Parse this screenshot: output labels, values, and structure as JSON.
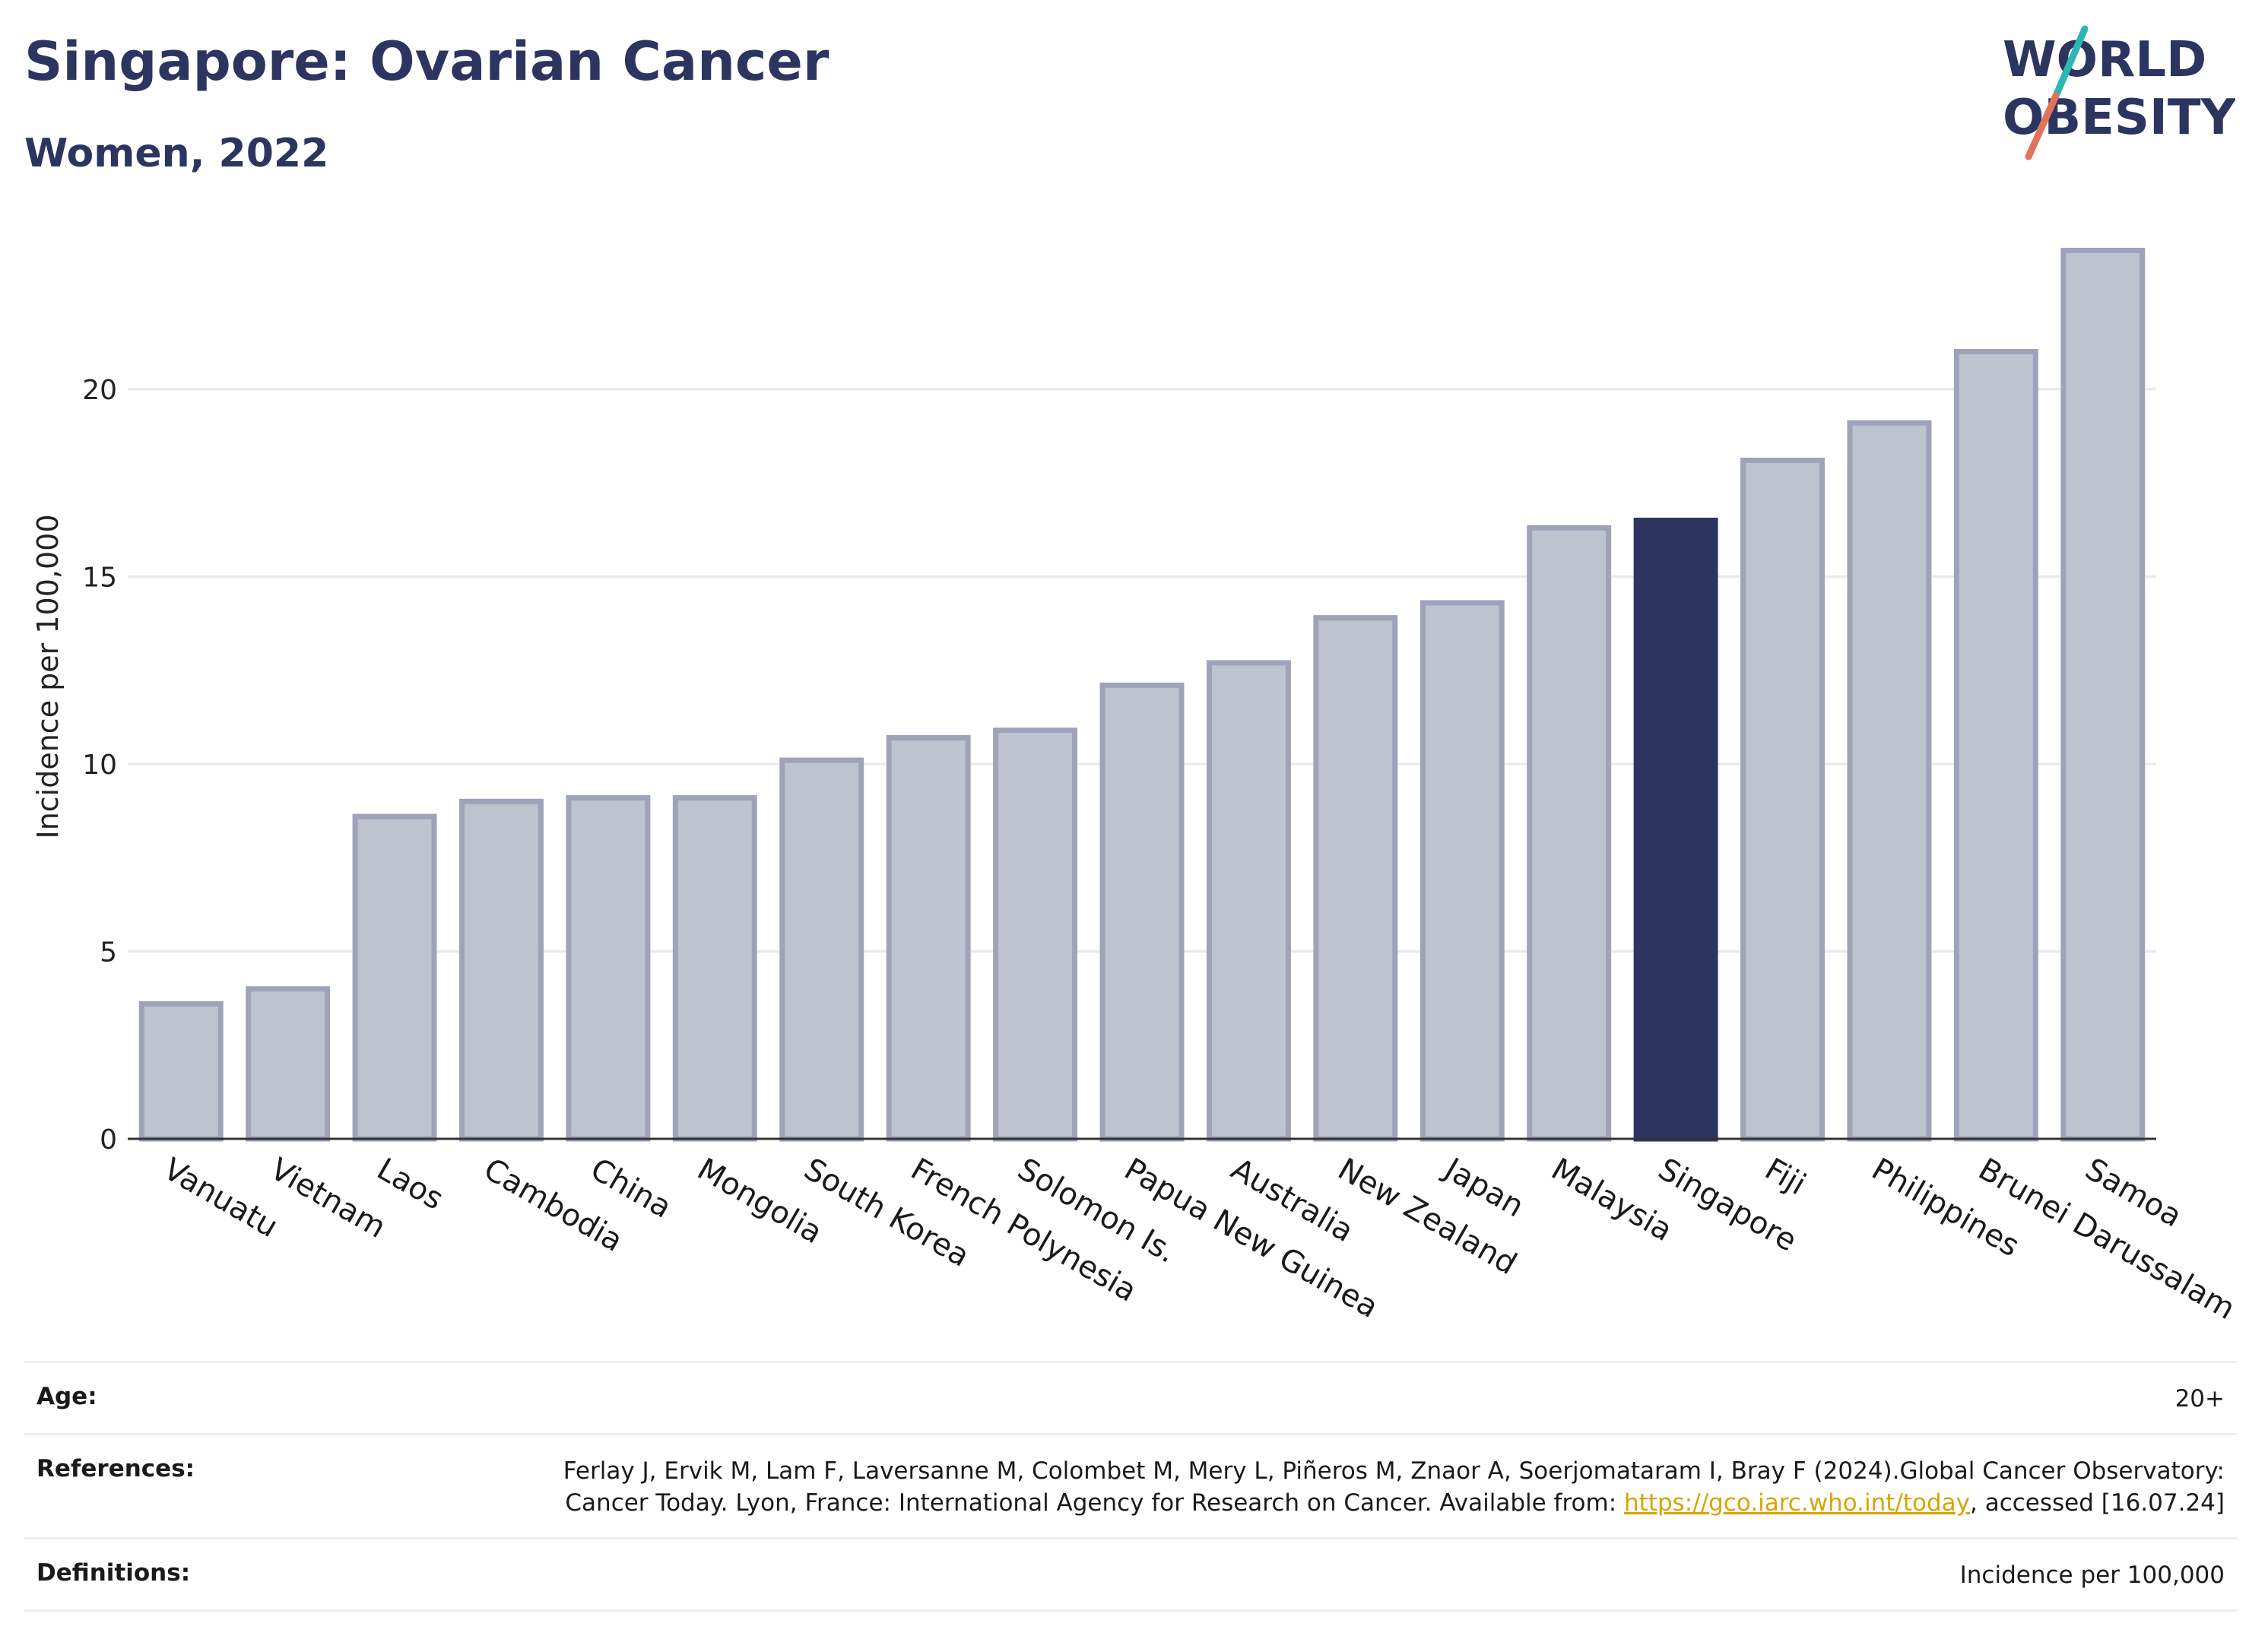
{
  "header": {
    "title": "Singapore: Ovarian Cancer",
    "subtitle": "Women, 2022",
    "logo_line1": "WORLD",
    "logo_line2": "OBESITY"
  },
  "colors": {
    "navy": "#2b3560",
    "bar_default": "#bfc2cf",
    "bar_border": "#9ea3ba",
    "logo_teal": "#2bb7b3",
    "logo_coral": "#e2725b",
    "link": "#d9a400"
  },
  "chart_data": {
    "type": "bar",
    "ylabel": "Incidence per 100,000",
    "ylim": [
      0,
      24.5
    ],
    "yticks": [
      0,
      5,
      10,
      15,
      20
    ],
    "grid": true,
    "highlight": "Singapore",
    "categories": [
      "Vanuatu",
      "Vietnam",
      "Laos",
      "Cambodia",
      "China",
      "Mongolia",
      "South Korea",
      "French Polynesia",
      "Solomon Is.",
      "Papua New Guinea",
      "Australia",
      "New Zealand",
      "Japan",
      "Malaysia",
      "Singapore",
      "Fiji",
      "Philippines",
      "Brunei Darussalam",
      "Samoa"
    ],
    "values": [
      3.6,
      4.0,
      8.6,
      9.0,
      9.1,
      9.1,
      10.1,
      10.7,
      10.9,
      12.1,
      12.7,
      13.9,
      14.3,
      16.3,
      16.5,
      18.1,
      19.1,
      21.0,
      23.7
    ]
  },
  "footer": {
    "age_label": "Age:",
    "age_value": "20+",
    "references_label": "References:",
    "references_text": "Ferlay J, Ervik M, Lam F, Laversanne M, Colombet M, Mery L, Piñeros M, Znaor A, Soerjomataram I, Bray F (2024).Global Cancer Observatory: Cancer Today. Lyon, France: International Agency for Research on Cancer. Available from:",
    "references_link": "https://gco.iarc.who.int/today",
    "references_tail": ", accessed [16.07.24]",
    "definitions_label": "Definitions:",
    "definitions_value": "Incidence per 100,000"
  }
}
